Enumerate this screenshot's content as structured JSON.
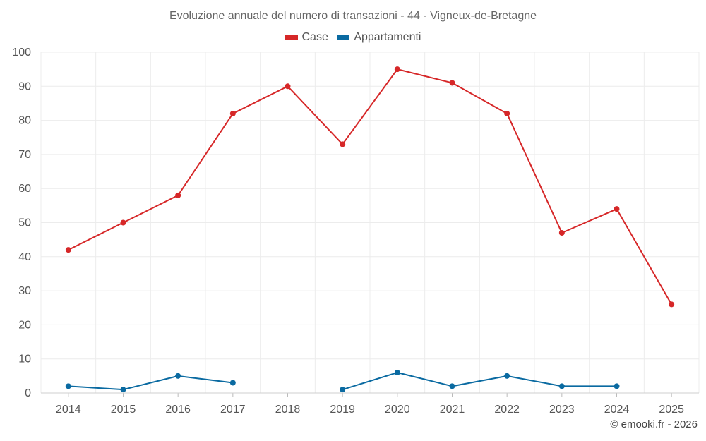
{
  "chart_data": {
    "type": "line",
    "title": "Evoluzione annuale del numero di transazioni - 44 - Vigneux-de-Bretagne",
    "categories": [
      "2014",
      "2015",
      "2016",
      "2017",
      "2018",
      "2019",
      "2020",
      "2021",
      "2022",
      "2023",
      "2024",
      "2025"
    ],
    "series": [
      {
        "name": "Case",
        "color": "#d62728",
        "values": [
          42,
          50,
          58,
          82,
          90,
          73,
          95,
          91,
          82,
          47,
          54,
          26
        ]
      },
      {
        "name": "Appartamenti",
        "color": "#0a6aa1",
        "values": [
          2,
          1,
          5,
          3,
          null,
          1,
          6,
          2,
          5,
          2,
          2,
          null
        ]
      }
    ],
    "ylim": [
      0,
      100
    ],
    "yticks": [
      0,
      10,
      20,
      30,
      40,
      50,
      60,
      70,
      80,
      90,
      100
    ],
    "xlabel": "",
    "ylabel": "",
    "grid": true,
    "legend_position": "top-center"
  },
  "footer": {
    "credit": "© emooki.fr - 2026"
  }
}
